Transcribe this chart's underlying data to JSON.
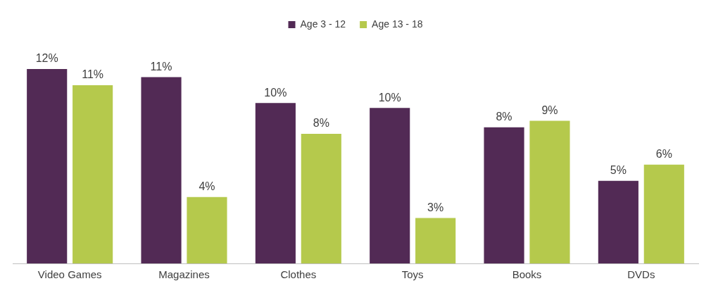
{
  "chart_data": {
    "type": "bar",
    "categories": [
      "Video Games",
      "Magazines",
      "Clothes",
      "Toys",
      "Books",
      "DVDs"
    ],
    "series": [
      {
        "name": "Age 3 - 12",
        "color": "#522a55",
        "values": [
          12.0,
          11.5,
          9.9,
          9.6,
          8.4,
          5.1
        ],
        "value_labels": [
          "12%",
          "11%",
          "10%",
          "10%",
          "8%",
          "5%"
        ]
      },
      {
        "name": "Age 13 - 18",
        "color": "#b5c94c",
        "values": [
          11.0,
          4.1,
          8.0,
          2.8,
          8.8,
          6.1
        ],
        "value_labels": [
          "11%",
          "4%",
          "8%",
          "3%",
          "9%",
          "6%"
        ]
      }
    ],
    "legend": "top"
  }
}
